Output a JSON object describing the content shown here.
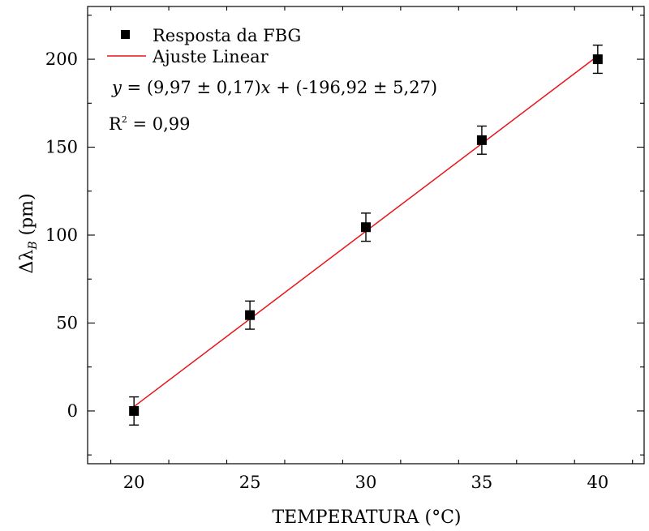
{
  "chart_data": {
    "type": "scatter",
    "xlabel": "TEMPERATURA (°C)",
    "ylabel_main": "Δλ",
    "ylabel_sub": "B",
    "ylabel_unit": " (pm)",
    "xlim": [
      18,
      42
    ],
    "ylim": [
      -30,
      230
    ],
    "x_ticks": [
      20,
      25,
      30,
      35,
      40
    ],
    "y_ticks": [
      0,
      50,
      100,
      150,
      200
    ],
    "x_minor_step": 2.5,
    "y_minor_step": 25,
    "grid": false,
    "legend_position": "top-left",
    "colors": {
      "points": "#000000",
      "fit": "#e8141a",
      "axes": "#000000"
    },
    "series": [
      {
        "name": "Resposta da FBG",
        "kind": "points-with-errorbars",
        "x": [
          20,
          25,
          30,
          35,
          40
        ],
        "y": [
          0,
          54.5,
          104.5,
          154,
          200
        ],
        "yerr": [
          8,
          8,
          8,
          8,
          8
        ]
      },
      {
        "name": "Ajuste Linear",
        "kind": "line",
        "x": [
          20,
          40
        ],
        "y": [
          2.48,
          201.88
        ]
      }
    ],
    "annotations": {
      "equation_y": "y",
      "equation_eq": " = (9,97 ± 0,17)",
      "equation_x": "x",
      "equation_rest": " + (-196,92 ± 5,27)",
      "r2_label": "R",
      "r2_sup": "2",
      "r2_value": " = 0,99"
    }
  }
}
